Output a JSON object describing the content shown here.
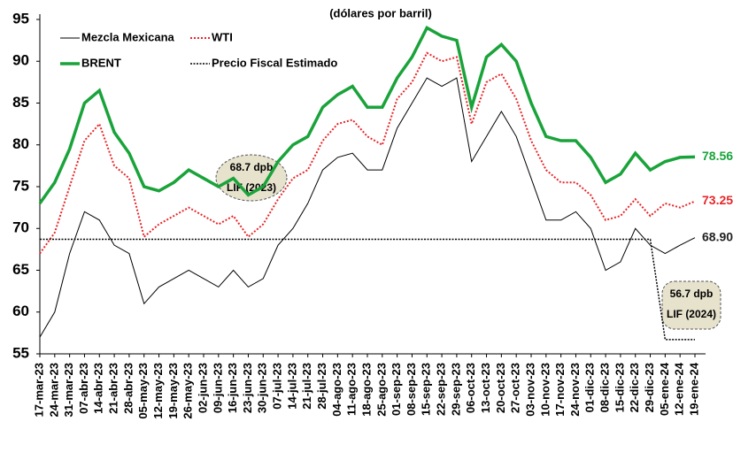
{
  "chart_data": {
    "type": "line",
    "subtitle": "(dólares por barril)",
    "categories": [
      "17-mar-23",
      "24-mar-23",
      "31-mar-23",
      "07-abr-23",
      "14-abr-23",
      "21-abr-23",
      "28-abr-23",
      "05-may-23",
      "12-may-23",
      "19-may-23",
      "26-may-23",
      "02-jun-23",
      "09-jun-23",
      "16-jun-23",
      "23-jun-23",
      "30-jun-23",
      "07-jul-23",
      "14-jul-23",
      "21-jul-23",
      "28-jul-23",
      "04-ago-23",
      "11-ago-23",
      "18-ago-23",
      "25-ago-23",
      "01-sep-23",
      "08-sep-23",
      "15-sep-23",
      "22-sep-23",
      "29-sep-23",
      "06-oct-23",
      "13-oct-23",
      "20-oct-23",
      "27-oct-23",
      "03-nov-23",
      "10-nov-23",
      "17-nov-23",
      "24-nov-23",
      "01-dic-23",
      "08-dic-23",
      "15-dic-23",
      "22-dic-23",
      "29-dic-23",
      "05-ene-24",
      "12-ene-24",
      "19-ene-24"
    ],
    "series": [
      {
        "name": "Mezcla Mexicana",
        "color": "#000000",
        "style": "solid",
        "width": 1,
        "values": [
          57,
          60,
          67,
          72,
          71,
          68,
          67,
          61,
          63,
          64,
          65,
          64,
          63,
          65,
          63,
          64,
          68,
          70,
          73,
          77,
          78.5,
          79,
          77,
          77,
          82,
          85,
          88,
          87,
          88,
          78,
          81,
          84,
          81,
          76,
          71,
          71,
          72,
          70,
          65,
          66,
          70,
          68,
          67,
          68,
          68.9
        ],
        "value_labels": [
          null,
          null,
          null,
          null,
          null,
          null,
          null,
          null,
          null,
          null,
          null,
          null,
          null,
          null,
          null,
          null,
          null,
          null,
          null,
          null,
          null,
          null,
          null,
          null,
          null,
          null,
          null,
          null,
          null,
          null,
          null,
          null,
          null,
          null,
          null,
          null,
          null,
          null,
          null,
          null,
          null,
          null,
          null,
          null,
          "68.90"
        ]
      },
      {
        "name": "WTI",
        "color": "#e8262a",
        "style": "dotted",
        "width": 2,
        "values": [
          67,
          69.5,
          75,
          80.5,
          82.5,
          77.5,
          76,
          69,
          70.5,
          71.5,
          72.5,
          71.5,
          70.5,
          71.5,
          69,
          70.5,
          73.5,
          76,
          77,
          80.5,
          82.5,
          83,
          81,
          80,
          85.5,
          87.5,
          91,
          90,
          90.5,
          82.5,
          87.5,
          88.5,
          85.5,
          80.5,
          77,
          75.5,
          75.5,
          74,
          71,
          71.5,
          73.5,
          71.5,
          73,
          72.5,
          73.25
        ],
        "value_labels": [
          null,
          null,
          null,
          null,
          null,
          null,
          null,
          null,
          null,
          null,
          null,
          null,
          null,
          null,
          null,
          null,
          null,
          null,
          null,
          null,
          null,
          null,
          null,
          null,
          null,
          null,
          null,
          null,
          null,
          null,
          null,
          null,
          null,
          null,
          null,
          null,
          null,
          null,
          null,
          null,
          null,
          null,
          null,
          null,
          "73.25"
        ]
      },
      {
        "name": "BRENT",
        "color": "#1aa33a",
        "style": "solid",
        "width": 3.5,
        "values": [
          73,
          75.5,
          79.5,
          85,
          86.5,
          81.5,
          79,
          75,
          74.5,
          75.5,
          77,
          76,
          75,
          76,
          74,
          75,
          78,
          80,
          81,
          84.5,
          86,
          87,
          84.5,
          84.5,
          88,
          90.5,
          94,
          93,
          92.5,
          84.5,
          90.5,
          92,
          90,
          85,
          81,
          80.5,
          80.5,
          78.5,
          75.5,
          76.5,
          79,
          77,
          78,
          78.5,
          78.56
        ],
        "value_labels": [
          null,
          null,
          null,
          null,
          null,
          null,
          null,
          null,
          null,
          null,
          null,
          null,
          null,
          null,
          null,
          null,
          null,
          null,
          null,
          null,
          null,
          null,
          null,
          null,
          null,
          null,
          null,
          null,
          null,
          null,
          null,
          null,
          null,
          null,
          null,
          null,
          null,
          null,
          null,
          null,
          null,
          null,
          null,
          null,
          "78.56"
        ]
      },
      {
        "name": "Precio Fiscal Estimado",
        "color": "#000000",
        "style": "dotted",
        "width": 1.5,
        "values": [
          68.7,
          68.7,
          68.7,
          68.7,
          68.7,
          68.7,
          68.7,
          68.7,
          68.7,
          68.7,
          68.7,
          68.7,
          68.7,
          68.7,
          68.7,
          68.7,
          68.7,
          68.7,
          68.7,
          68.7,
          68.7,
          68.7,
          68.7,
          68.7,
          68.7,
          68.7,
          68.7,
          68.7,
          68.7,
          68.7,
          68.7,
          68.7,
          68.7,
          68.7,
          68.7,
          68.7,
          68.7,
          68.7,
          68.7,
          68.7,
          68.7,
          68.7,
          56.7,
          56.7,
          56.7
        ]
      }
    ],
    "annotations": [
      {
        "lines": [
          "68.7 dpb",
          "LIF (2023)"
        ]
      },
      {
        "lines": [
          "56.7 dpb",
          "LIF (2024)"
        ]
      }
    ],
    "ylim": [
      55,
      95
    ],
    "yticks": [
      55,
      60,
      65,
      70,
      75,
      80,
      85,
      90,
      95
    ],
    "grid": false,
    "legend": "upper left"
  }
}
